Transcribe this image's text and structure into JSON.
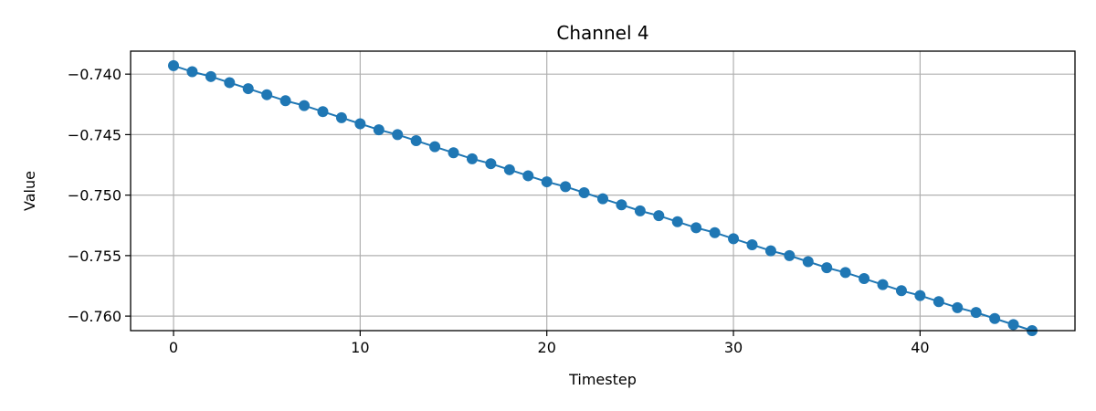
{
  "chart_data": {
    "type": "line",
    "title": "Channel 4",
    "xlabel": "Timestep",
    "ylabel": "Value",
    "xlim": [
      -2.3,
      48.3
    ],
    "ylim": [
      -0.7612,
      -0.7381
    ],
    "x_ticks": [
      0,
      10,
      20,
      30,
      40
    ],
    "x_tick_labels": [
      "0",
      "10",
      "20",
      "30",
      "40"
    ],
    "y_ticks": [
      -0.74,
      -0.745,
      -0.75,
      -0.755,
      -0.76
    ],
    "y_tick_labels": [
      "−0.740",
      "−0.745",
      "−0.750",
      "−0.755",
      "−0.760"
    ],
    "grid": true,
    "color": "#1f77b4",
    "marker": "circle",
    "x": [
      0,
      1,
      2,
      3,
      4,
      5,
      6,
      7,
      8,
      9,
      10,
      11,
      12,
      13,
      14,
      15,
      16,
      17,
      18,
      19,
      20,
      21,
      22,
      23,
      24,
      25,
      26,
      27,
      28,
      29,
      30,
      31,
      32,
      33,
      34,
      35,
      36,
      37,
      38,
      39,
      40,
      41,
      42,
      43,
      44,
      45,
      46
    ],
    "values": [
      -0.7393,
      -0.7398,
      -0.7402,
      -0.7407,
      -0.7412,
      -0.7417,
      -0.7422,
      -0.7426,
      -0.7431,
      -0.7436,
      -0.7441,
      -0.7446,
      -0.745,
      -0.7455,
      -0.746,
      -0.7465,
      -0.747,
      -0.7474,
      -0.7479,
      -0.7484,
      -0.7489,
      -0.7493,
      -0.7498,
      -0.7503,
      -0.7508,
      -0.7513,
      -0.7517,
      -0.7522,
      -0.7527,
      -0.7531,
      -0.7536,
      -0.7541,
      -0.7546,
      -0.755,
      -0.7555,
      -0.756,
      -0.7564,
      -0.7569,
      -0.7574,
      -0.7579,
      -0.7583,
      -0.7588,
      -0.7593,
      -0.7597,
      -0.7602,
      -0.7607,
      -0.7612
    ]
  }
}
